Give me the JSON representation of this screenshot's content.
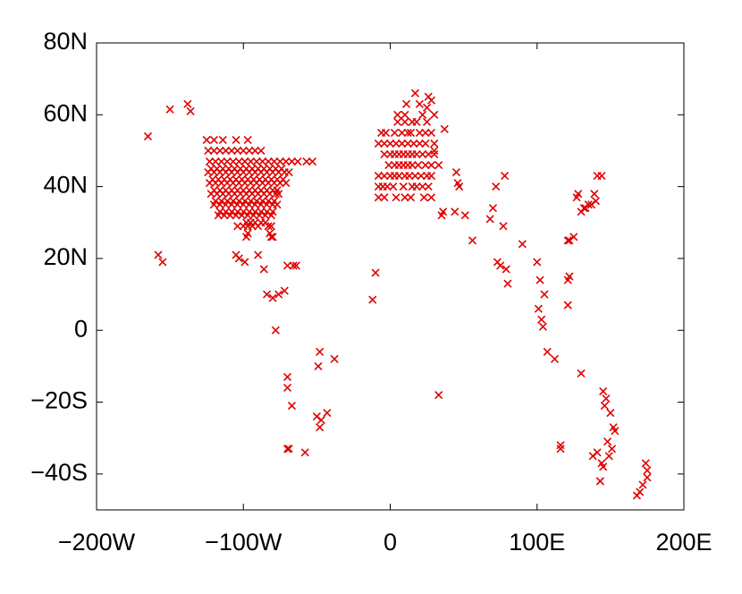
{
  "chart_data": {
    "type": "scatter",
    "marker": "x",
    "color": "#e00000",
    "xlim": [
      -200,
      200
    ],
    "ylim": [
      -50,
      80
    ],
    "xticks": [
      {
        "value": -200,
        "label": "−200W"
      },
      {
        "value": -100,
        "label": "−100W"
      },
      0,
      {
        "value": 100,
        "label": "100E"
      },
      {
        "value": 200,
        "label": "200E"
      }
    ],
    "yticks": [
      {
        "value": -40,
        "label": "−40S"
      },
      {
        "value": -20,
        "label": "−20S"
      },
      0,
      {
        "value": 20,
        "label": "20N"
      },
      {
        "value": 40,
        "label": "40N"
      },
      {
        "value": 60,
        "label": "60N"
      },
      {
        "value": 80,
        "label": "80N"
      }
    ],
    "x": [
      -165,
      -150,
      -138,
      -136,
      -158,
      -155,
      -125,
      -120,
      -114,
      -105,
      -97,
      -124,
      -120,
      -116,
      -112,
      -108,
      -104,
      -100,
      -96,
      -92,
      -88,
      -123,
      -119,
      -115,
      -111,
      -107,
      -103,
      -99,
      -95,
      -91,
      -87,
      -83,
      -79,
      -75,
      -71,
      -67,
      -63,
      -57,
      -53,
      -124,
      -120,
      -116,
      -112,
      -108,
      -104,
      -100,
      -96,
      -92,
      -88,
      -84,
      -80,
      -76,
      -72,
      -69,
      -123,
      -119,
      -115,
      -111,
      -107,
      -103,
      -99,
      -95,
      -91,
      -87,
      -83,
      -79,
      -75,
      -71,
      -122,
      -118,
      -114,
      -110,
      -106,
      -102,
      -98,
      -94,
      -90,
      -86,
      -82,
      -78,
      -76,
      -120,
      -116,
      -112,
      -108,
      -104,
      -100,
      -96,
      -92,
      -88,
      -84,
      -80,
      -77,
      -117,
      -113,
      -109,
      -105,
      -101,
      -97,
      -93,
      -89,
      -85,
      -81,
      -104,
      -100,
      -97,
      -94,
      -90,
      -83,
      -81,
      -98,
      -81,
      -80,
      -122,
      -118,
      -114,
      -110,
      -106,
      -102,
      -98,
      -94,
      -90,
      -86,
      -82,
      -78,
      -74,
      -121,
      -117,
      -113,
      -109,
      -105,
      -101,
      -97,
      -93,
      -89,
      -85,
      -81,
      -77,
      -73,
      -120,
      -116,
      -112,
      -108,
      -104,
      -100,
      -96,
      -92,
      -88,
      -84,
      -80,
      -77,
      -119,
      -115,
      -111,
      -107,
      -103,
      -99,
      -95,
      -91,
      -87,
      -83,
      -79,
      -116,
      -112,
      -108,
      -104,
      -100,
      -96,
      -92,
      -88,
      -84,
      -80,
      -98,
      -95,
      -92,
      -88,
      -85,
      -97,
      -82,
      -105,
      -103,
      -99,
      -90,
      -86,
      -84,
      -80,
      -76,
      -72,
      -66,
      -64,
      -70,
      -78,
      -70,
      -70,
      -67,
      -70,
      -69,
      -58,
      -48,
      -49,
      -38,
      -50,
      -48,
      -43,
      -47,
      -10,
      -12,
      33,
      5,
      10,
      15,
      18,
      25,
      -6,
      -3,
      3,
      8,
      12,
      14,
      20,
      24,
      28,
      -8,
      -4,
      0,
      4,
      8,
      12,
      16,
      20,
      24,
      30,
      -4,
      0,
      3,
      6,
      9,
      12,
      15,
      18,
      22,
      26,
      30,
      -1,
      3,
      6,
      9,
      12,
      15,
      19,
      24,
      28,
      -8,
      -4,
      0,
      3,
      6,
      10,
      13,
      17,
      21,
      25,
      28,
      -8,
      -5,
      -2,
      2,
      9,
      15,
      18,
      22,
      26,
      -8,
      -4,
      4,
      10,
      14,
      23,
      28,
      5,
      10,
      11,
      17,
      20,
      25,
      28,
      22,
      30,
      26,
      35,
      36,
      44,
      46,
      47,
      51,
      56,
      68,
      70,
      72,
      78,
      77,
      73,
      75,
      80,
      79,
      90,
      30,
      37,
      33,
      45,
      100,
      102,
      105,
      101,
      103,
      104,
      107,
      112,
      116,
      116,
      121,
      122,
      121,
      122,
      125,
      121,
      130,
      135,
      140,
      130,
      141,
      144,
      127,
      128,
      132,
      137,
      139,
      133,
      145,
      147,
      150,
      152,
      153,
      151,
      149,
      145,
      144,
      143,
      141,
      138,
      146,
      148,
      174,
      175,
      175,
      172,
      170,
      168
    ],
    "y": [
      54,
      61.5,
      63,
      61,
      21,
      19,
      53,
      53,
      53,
      53,
      53,
      50,
      50,
      50,
      50,
      50,
      50,
      50,
      50,
      50,
      50,
      47,
      47,
      47,
      47,
      47,
      47,
      47,
      47,
      47,
      47,
      47,
      47,
      47,
      47,
      47,
      47,
      47,
      47,
      44,
      44,
      44,
      44,
      44,
      44,
      44,
      44,
      44,
      44,
      44,
      44,
      44,
      44,
      44,
      41,
      41,
      41,
      41,
      41,
      41,
      41,
      41,
      41,
      41,
      41,
      41,
      41,
      41,
      38,
      38,
      38,
      38,
      38,
      38,
      38,
      38,
      38,
      38,
      38,
      38,
      38,
      35,
      35,
      35,
      35,
      35,
      35,
      35,
      35,
      35,
      35,
      35,
      35,
      32,
      32,
      32,
      32,
      32,
      32,
      32,
      32,
      32,
      32,
      29,
      29,
      29,
      29,
      29,
      29,
      29,
      26,
      26,
      26,
      45,
      45,
      45,
      45,
      45,
      45,
      45,
      45,
      45,
      45,
      45,
      45,
      45,
      42,
      42,
      42,
      42,
      42,
      42,
      42,
      42,
      42,
      42,
      42,
      42,
      42,
      39,
      39,
      39,
      39,
      39,
      39,
      39,
      39,
      39,
      39,
      39,
      39,
      36,
      36,
      36,
      36,
      36,
      36,
      36,
      36,
      36,
      36,
      36,
      33,
      33,
      33,
      33,
      33,
      33,
      33,
      33,
      33,
      33,
      30,
      30,
      30,
      30,
      30,
      27,
      27,
      21,
      20,
      19,
      21,
      17,
      10,
      9,
      10,
      11,
      18,
      18,
      18,
      0,
      -13,
      -16,
      -21,
      -33,
      -33,
      -34,
      -6,
      -10,
      -8,
      -24,
      -27,
      -23,
      -25,
      16,
      8.5,
      -18,
      58,
      58,
      58,
      58,
      58,
      55,
      55,
      55,
      55,
      55,
      55,
      55,
      55,
      55,
      52,
      52,
      52,
      52,
      52,
      52,
      52,
      52,
      52,
      52,
      49,
      49,
      49,
      49,
      49,
      49,
      49,
      49,
      49,
      49,
      49,
      46,
      46,
      46,
      46,
      46,
      46,
      46,
      46,
      46,
      43,
      43,
      43,
      43,
      43,
      43,
      43,
      43,
      43,
      43,
      43,
      40,
      40,
      40,
      40,
      40,
      40,
      40,
      40,
      40,
      37,
      37,
      37,
      37,
      37,
      37,
      37,
      60,
      60,
      63,
      66,
      63,
      62,
      64,
      60,
      60,
      65,
      32,
      33,
      33,
      41,
      40,
      32,
      25,
      31,
      34,
      40,
      43,
      29,
      19,
      18,
      13,
      17,
      24,
      50,
      56,
      46,
      44,
      19,
      14,
      10,
      6,
      3,
      1,
      -6,
      -8,
      -32,
      -33,
      14,
      15,
      25,
      25,
      26,
      7,
      -12,
      35,
      36,
      33,
      43,
      43,
      37,
      38,
      34,
      35,
      38,
      34,
      -17,
      -19,
      -23,
      -27,
      -28,
      -33,
      -35,
      -38,
      -37,
      -42,
      -34,
      -35,
      -21,
      -31,
      -37,
      -39,
      -41,
      -43,
      -45,
      -46
    ]
  }
}
